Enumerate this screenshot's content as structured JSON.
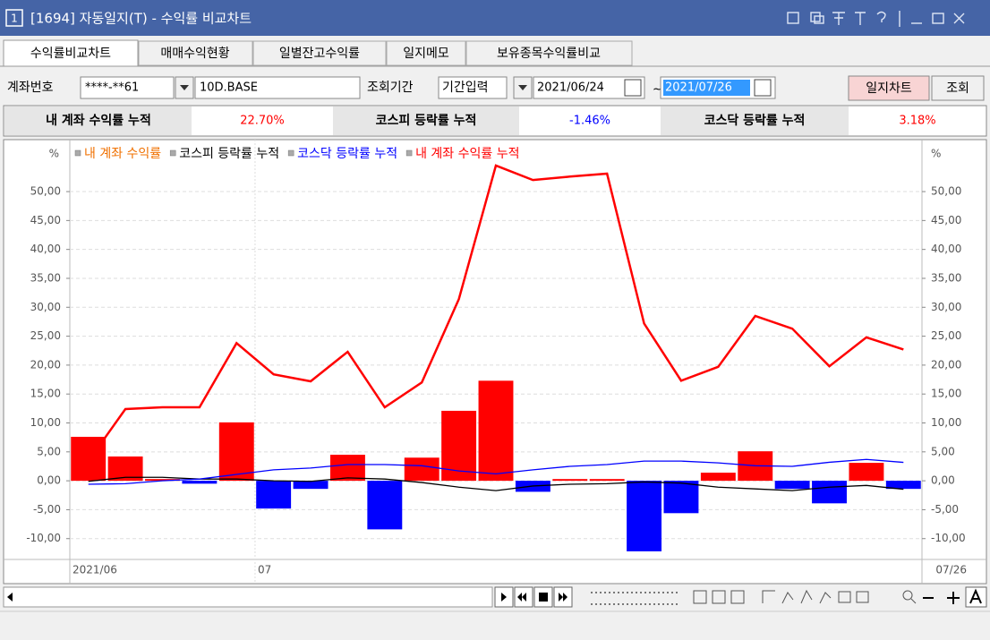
{
  "window": {
    "number": "1",
    "title": "[1694] 자동일지(T) - 수익률 비교차트"
  },
  "tabs": [
    "수익률비교차트",
    "매매수익현황",
    "일별잔고수익률",
    "일지메모",
    "보유종목수익률비교"
  ],
  "query": {
    "account_label": "계좌번호",
    "account": "****-**61",
    "account_name": "10D.BASE",
    "period_label": "조회기간",
    "period_mode": "기간입력",
    "start": "2021/06/24",
    "tilde": "~",
    "end": "2021/07/26",
    "buttons": [
      "일지차트",
      "조회"
    ]
  },
  "summary": [
    {
      "label": "내 계좌 수익률 누적",
      "value": "22.70%",
      "color": "#ff0000"
    },
    {
      "label": "코스피 등락률 누적",
      "value": "-1.46%",
      "color": "#0000ff"
    },
    {
      "label": "코스닥 등락률 누적",
      "value": "3.18%",
      "color": "#ff0000"
    }
  ],
  "chart_data": {
    "type": "combo",
    "unit": "%",
    "categories": [
      "2021/06",
      null,
      null,
      null,
      null,
      "07",
      null,
      null,
      null,
      null,
      null,
      null,
      null,
      null,
      null,
      null,
      null,
      null,
      null,
      null,
      null,
      null,
      "07/26"
    ],
    "series": [
      {
        "name": "내 계좌 수익률",
        "type": "bar",
        "color": "#ff0000",
        "negative_color": "#0000ff",
        "legend_color": "#f07000",
        "values": [
          7.6,
          4.2,
          0.3,
          -0.5,
          10.1,
          -4.8,
          -1.4,
          4.5,
          -8.4,
          4.0,
          12.1,
          17.3,
          -1.9,
          0.3,
          0.3,
          -12.2,
          -5.6,
          1.4,
          5.1,
          -1.4,
          -3.9,
          3.1,
          -1.4
        ]
      },
      {
        "name": "코스피 등락률 누적",
        "type": "line",
        "color": "#000000",
        "values": [
          -0.1,
          0.6,
          0.6,
          0.3,
          0.3,
          0.0,
          -0.1,
          0.5,
          0.3,
          -0.3,
          -1.1,
          -1.7,
          -0.9,
          -0.6,
          -0.5,
          -0.2,
          -0.4,
          -1.1,
          -1.4,
          -1.7,
          -1.1,
          -0.8,
          -1.46
        ]
      },
      {
        "name": "코스닥 등락률 누적",
        "type": "line",
        "color": "#0000ff",
        "values": [
          -0.6,
          -0.5,
          0.0,
          0.3,
          1.1,
          1.9,
          2.2,
          2.8,
          2.8,
          2.6,
          1.7,
          1.2,
          1.9,
          2.5,
          2.8,
          3.4,
          3.4,
          3.1,
          2.6,
          2.5,
          3.2,
          3.7,
          3.18
        ]
      },
      {
        "name": "내 계좌 수익률 누적",
        "type": "line",
        "color": "#ff0000",
        "values": [
          3.4,
          12.4,
          12.7,
          12.7,
          23.8,
          18.4,
          17.2,
          22.3,
          12.7,
          17.0,
          31.4,
          54.5,
          52.0,
          52.6,
          53.1,
          27.2,
          17.3,
          19.7,
          28.5,
          26.3,
          19.8,
          24.8,
          22.7
        ]
      }
    ],
    "ylim": [
      -13.6,
      57.9
    ],
    "yticks": [
      {
        "value": 50,
        "label": "50,00"
      },
      {
        "value": 45,
        "label": "45,00"
      },
      {
        "value": 40,
        "label": "40,00"
      },
      {
        "value": 35,
        "label": "35,00"
      },
      {
        "value": 30,
        "label": "30,00"
      },
      {
        "value": 25,
        "label": "25,00"
      },
      {
        "value": 20,
        "label": "20,00"
      },
      {
        "value": 15,
        "label": "15,00"
      },
      {
        "value": 10,
        "label": "10,00"
      },
      {
        "value": 5,
        "label": "5,00"
      },
      {
        "value": 0,
        "label": "0,00"
      },
      {
        "value": -5,
        "label": "-5,00"
      },
      {
        "value": -10,
        "label": "-10,00"
      }
    ],
    "grid": true,
    "legend": "top-left"
  }
}
